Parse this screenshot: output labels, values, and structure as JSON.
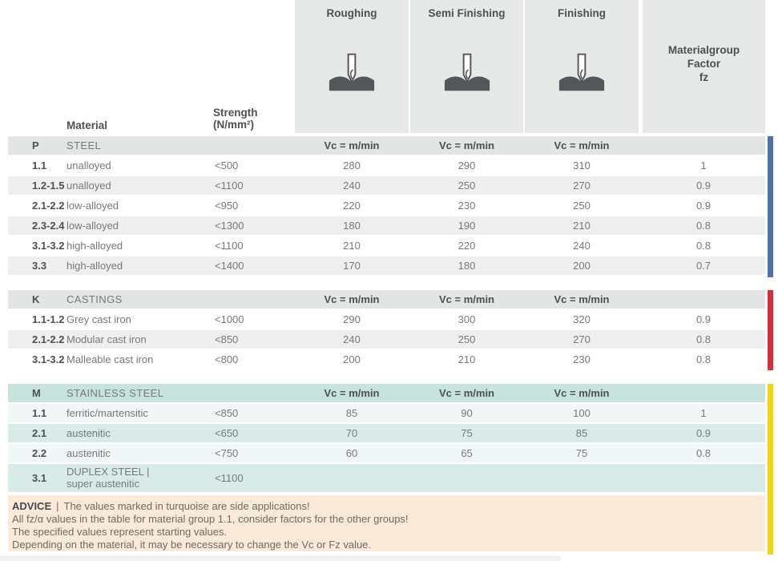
{
  "header": {
    "material_label": "Material",
    "strength_line1": "Strength",
    "strength_line2": "(N/mm²)",
    "operations": [
      {
        "label": "Roughing",
        "icon": "end-mill-icon"
      },
      {
        "label": "Semi Finishing",
        "icon": "end-mill-icon"
      },
      {
        "label": "Finishing",
        "icon": "end-mill-icon"
      }
    ],
    "factor_line1": "Materialgroup",
    "factor_line2": "Factor",
    "factor_line3": "fz"
  },
  "vc_header": "Vc = m/min",
  "sections": [
    {
      "code": "P",
      "name": "STEEL",
      "theme": "gray",
      "bar_color": "#4c73ae",
      "rows": [
        {
          "code": "1.1",
          "material": "unalloyed",
          "strength": "<500",
          "roughing": "280",
          "semi": "290",
          "finishing": "310",
          "factor": "1"
        },
        {
          "code": "1.2-1.5",
          "material": "unalloyed",
          "strength": "<1100",
          "roughing": "240",
          "semi": "250",
          "finishing": "270",
          "factor": "0.9"
        },
        {
          "code": "2.1-2.2",
          "material": "low-alloyed",
          "strength": "<950",
          "roughing": "220",
          "semi": "230",
          "finishing": "250",
          "factor": "0.9"
        },
        {
          "code": "2.3-2.4",
          "material": "low-alloyed",
          "strength": "<1300",
          "roughing": "180",
          "semi": "190",
          "finishing": "210",
          "factor": "0.8"
        },
        {
          "code": "3.1-3.2",
          "material": "high-alloyed",
          "strength": "<1100",
          "roughing": "210",
          "semi": "220",
          "finishing": "240",
          "factor": "0.8"
        },
        {
          "code": "3.3",
          "material": "high-alloyed",
          "strength": "<1400",
          "roughing": "170",
          "semi": "180",
          "finishing": "200",
          "factor": "0.7"
        }
      ]
    },
    {
      "code": "K",
      "name": "CASTINGS",
      "theme": "gray",
      "bar_color": "#d62f39",
      "rows": [
        {
          "code": "1.1-1.2",
          "material": "Grey cast iron",
          "strength": "<1000",
          "roughing": "290",
          "semi": "300",
          "finishing": "320",
          "factor": "0.9"
        },
        {
          "code": "2.1-2.2",
          "material": "Modular cast iron",
          "strength": "<850",
          "roughing": "240",
          "semi": "250",
          "finishing": "270",
          "factor": "0.8"
        },
        {
          "code": "3.1-3.2",
          "material": "Malleable cast iron",
          "strength": "<800",
          "roughing": "200",
          "semi": "210",
          "finishing": "230",
          "factor": "0.8"
        }
      ]
    },
    {
      "code": "M",
      "name": "STAINLESS STEEL",
      "theme": "teal",
      "bar_color": "#f2d411",
      "rows": [
        {
          "code": "1.1",
          "material": "ferritic/martensitic",
          "strength": "<850",
          "roughing": "85",
          "semi": "90",
          "finishing": "100",
          "factor": "1"
        },
        {
          "code": "2.1",
          "material": "austenitic",
          "strength": "<650",
          "roughing": "70",
          "semi": "75",
          "finishing": "85",
          "factor": "0.9"
        },
        {
          "code": "2.2",
          "material": "austenitic",
          "strength": "<750",
          "roughing": "60",
          "semi": "65",
          "finishing": "75",
          "factor": "0.8"
        },
        {
          "code": "3.1",
          "material": "DUPLEX STEEL |",
          "material2": "super austenitic",
          "strength": "<1100",
          "roughing": "",
          "semi": "",
          "finishing": "",
          "factor": ""
        }
      ]
    }
  ],
  "advice": {
    "label": "ADVICE",
    "separator": "|",
    "line1": "The values marked in turquoise are side applications!",
    "lines": [
      "All fz/α values in the table for material group 1.1, consider factors for the other groups!",
      "The specified values represent starting values.",
      "Depending on the material, it may be necessary to change the Vc or Fz value."
    ]
  },
  "colors": {
    "steel_bar": "#4c73ae",
    "castings_bar": "#d62f39",
    "stainless_bar": "#f2d411",
    "turquoise_highlight": "#d9ebe8",
    "advice_background": "#fbe9da",
    "header_box_background": "#e7e9e8"
  }
}
